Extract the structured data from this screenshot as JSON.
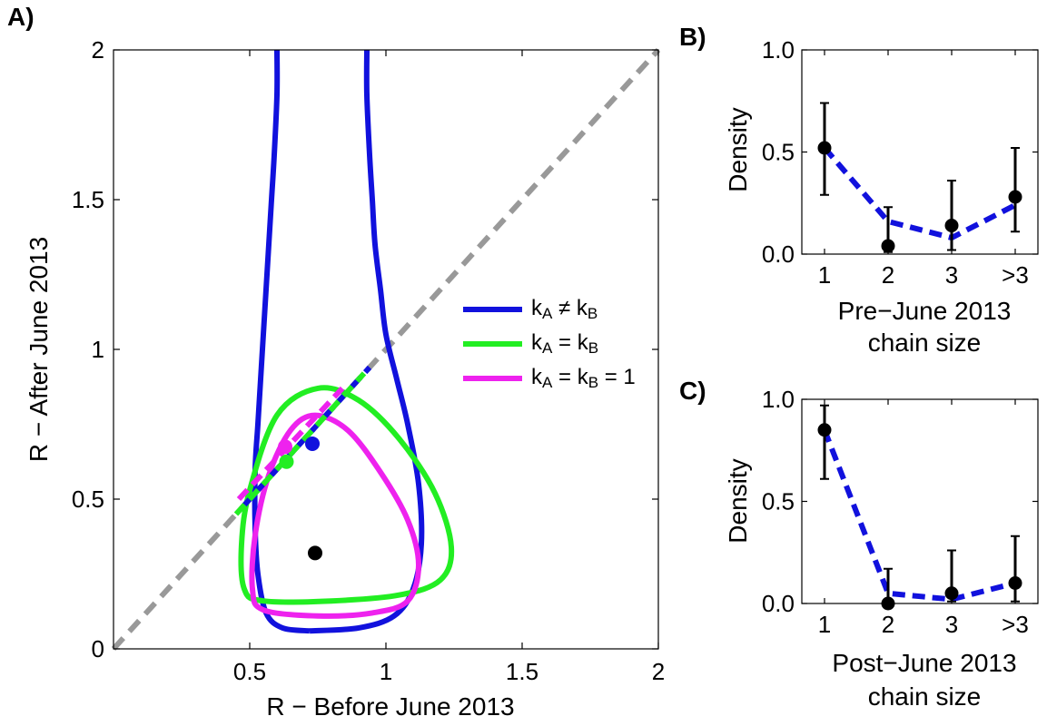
{
  "panels": {
    "a": "A)",
    "b": "B)",
    "c": "C)"
  },
  "chart_data": [
    {
      "id": "A",
      "type": "line",
      "xlabel": "R − Before June 2013",
      "ylabel": "R − After June 2013",
      "xlim": [
        0,
        2
      ],
      "ylim": [
        0,
        2
      ],
      "xticks": [
        "0.5",
        "1",
        "1.5",
        "2"
      ],
      "xtick_values": [
        0.5,
        1,
        1.5,
        2
      ],
      "yticks": [
        "0",
        "0.5",
        "1",
        "1.5",
        "2"
      ],
      "ytick_values": [
        0,
        0.5,
        1,
        1.5,
        2
      ],
      "grid": false,
      "legend_position": "center-right",
      "diagonal": {
        "x": [
          0,
          2
        ],
        "y": [
          0,
          2
        ],
        "color": "#999999",
        "style": "dashed"
      },
      "observed_point": {
        "x": 0.74,
        "y": 0.32,
        "color": "#000000"
      },
      "series": [
        {
          "label_main": "k",
          "sub1": "A",
          "op": " ≠ k",
          "sub2": "B",
          "tail": "",
          "color": "#1111dd",
          "estimate": {
            "x": 0.73,
            "y": 0.685
          },
          "line": {
            "x": [
              0.48,
              0.94
            ],
            "y": [
              0.48,
              0.94
            ]
          },
          "contour_left": {
            "x": [
              0.6,
              0.6,
              0.59,
              0.58,
              0.57,
              0.56,
              0.55,
              0.54,
              0.53,
              0.52,
              0.52,
              0.53,
              0.56,
              0.62,
              0.72
            ],
            "y": [
              2.0,
              1.85,
              1.65,
              1.5,
              1.35,
              1.2,
              1.05,
              0.9,
              0.75,
              0.6,
              0.4,
              0.25,
              0.12,
              0.07,
              0.06
            ]
          },
          "contour_right": {
            "x": [
              0.93,
              0.93,
              0.94,
              0.95,
              0.96,
              0.98,
              1.0,
              1.04,
              1.08,
              1.12,
              1.13,
              1.1,
              1.03,
              0.9,
              0.72
            ],
            "y": [
              2.0,
              1.85,
              1.65,
              1.5,
              1.35,
              1.2,
              1.05,
              0.9,
              0.75,
              0.55,
              0.35,
              0.2,
              0.11,
              0.07,
              0.06
            ]
          }
        },
        {
          "label_main": "k",
          "sub1": "A",
          "op": " = k",
          "sub2": "B",
          "tail": "",
          "color": "#22ee22",
          "estimate": {
            "x": 0.635,
            "y": 0.625
          },
          "line": {
            "x": [
              0.45,
              0.92
            ],
            "y": [
              0.45,
              0.92
            ]
          },
          "contour": {
            "x": [
              0.75,
              0.9,
              1.05,
              1.18,
              1.24,
              1.2,
              1.05,
              0.8,
              0.55,
              0.48,
              0.47,
              0.5,
              0.6,
              0.75
            ],
            "y": [
              0.87,
              0.83,
              0.7,
              0.52,
              0.34,
              0.23,
              0.18,
              0.16,
              0.16,
              0.2,
              0.35,
              0.53,
              0.78,
              0.87
            ]
          }
        },
        {
          "label_main": "k",
          "sub1": "A",
          "op": " = k",
          "sub2": "B",
          "tail": " = 1",
          "color": "#ee22ee",
          "estimate": {
            "x": 0.63,
            "y": 0.675
          },
          "line": {
            "x": [
              0.46,
              0.84
            ],
            "y": [
              0.5,
              0.87
            ]
          },
          "contour": {
            "x": [
              0.74,
              0.86,
              0.98,
              1.08,
              1.12,
              1.08,
              0.95,
              0.75,
              0.55,
              0.51,
              0.52,
              0.57,
              0.65,
              0.74
            ],
            "y": [
              0.78,
              0.73,
              0.59,
              0.43,
              0.28,
              0.16,
              0.12,
              0.11,
              0.13,
              0.2,
              0.38,
              0.58,
              0.73,
              0.78
            ]
          }
        }
      ]
    },
    {
      "id": "B",
      "type": "scatter",
      "xlabel_line1": "Pre−June 2013",
      "xlabel_line2": "chain size",
      "ylabel": "Density",
      "categories": [
        "1",
        "2",
        "3",
        ">3"
      ],
      "yticks": [
        "0.0",
        "0.5",
        "1.0"
      ],
      "ytick_values": [
        0,
        0.5,
        1.0
      ],
      "ylim": [
        0,
        1
      ],
      "observed": [
        0.52,
        0.04,
        0.14,
        0.28
      ],
      "err_low": [
        0.29,
        0.01,
        0.02,
        0.11
      ],
      "err_high": [
        0.74,
        0.23,
        0.36,
        0.52
      ],
      "model": [
        0.52,
        0.16,
        0.08,
        0.24
      ],
      "model_color": "#1111dd"
    },
    {
      "id": "C",
      "type": "scatter",
      "xlabel_line1": "Post−June 2013",
      "xlabel_line2": "chain size",
      "ylabel": "Density",
      "categories": [
        "1",
        "2",
        "3",
        ">3"
      ],
      "yticks": [
        "0.0",
        "0.5",
        "1.0"
      ],
      "ytick_values": [
        0,
        0.5,
        1.0
      ],
      "ylim": [
        0,
        1
      ],
      "observed": [
        0.85,
        0.0,
        0.05,
        0.1
      ],
      "err_low": [
        0.61,
        0.0,
        0.01,
        0.01
      ],
      "err_high": [
        0.97,
        0.17,
        0.26,
        0.33
      ],
      "model": [
        0.85,
        0.05,
        0.02,
        0.1
      ],
      "model_color": "#1111dd"
    }
  ]
}
